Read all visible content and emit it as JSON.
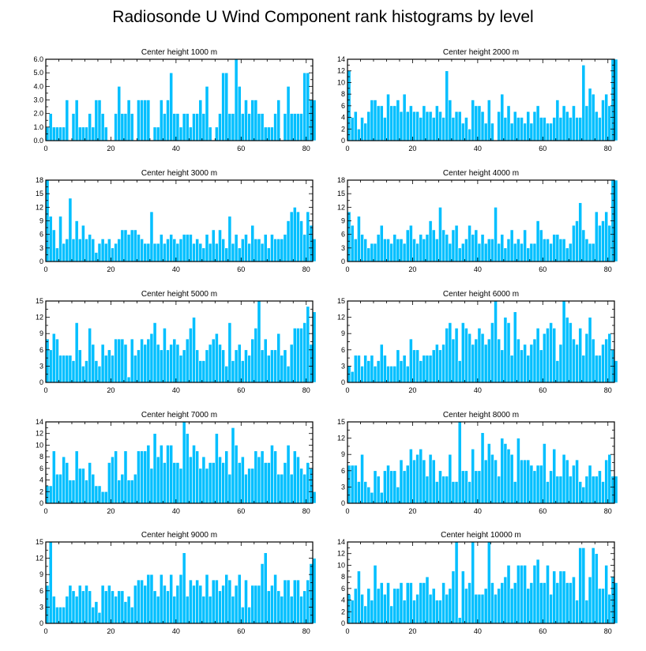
{
  "figure": {
    "title": "Radiosonde U Wind Component rank histograms by level"
  },
  "colors": {
    "bar": "#00BFFF",
    "bar_edge": "#ffffff",
    "axis": "#000000"
  },
  "chart_data": [
    {
      "type": "bar",
      "title": "Center height 1000 m",
      "xlim": [
        0,
        82
      ],
      "ylim": [
        0,
        6
      ],
      "xticks": [
        "0",
        "20",
        "40",
        "60",
        "80"
      ],
      "yticks": [
        "0.0",
        "1.0",
        "2.0",
        "3.0",
        "4.0",
        "5.0",
        "6.0"
      ],
      "values": [
        1,
        2,
        1,
        1,
        1,
        1,
        3,
        0,
        2,
        3,
        1,
        1,
        1,
        2,
        1,
        3,
        3,
        2,
        1,
        0,
        0,
        2,
        4,
        2,
        2,
        3,
        2,
        0,
        3,
        3,
        3,
        3,
        0,
        1,
        1,
        3,
        2,
        3,
        5,
        2,
        2,
        1,
        2,
        2,
        1,
        2,
        2,
        3,
        2,
        4,
        1,
        0,
        1,
        2,
        5,
        5,
        2,
        2,
        6,
        4,
        2,
        3,
        2,
        3,
        3,
        2,
        2,
        1,
        1,
        1,
        2,
        3,
        0,
        2,
        4,
        2,
        2,
        2,
        2,
        5,
        5,
        3,
        3
      ]
    },
    {
      "type": "bar",
      "title": "Center height 2000 m",
      "xlim": [
        0,
        82
      ],
      "ylim": [
        0,
        14
      ],
      "xticks": [
        "0",
        "20",
        "40",
        "60",
        "80"
      ],
      "yticks": [
        "0",
        "2",
        "4",
        "6",
        "8",
        "10",
        "12",
        "14"
      ],
      "values": [
        12,
        4,
        5,
        2,
        4,
        3,
        5,
        7,
        7,
        6,
        6,
        4,
        8,
        6,
        6,
        7,
        5,
        8,
        5,
        6,
        5,
        5,
        4,
        6,
        5,
        5,
        4,
        6,
        5,
        4,
        12,
        7,
        4,
        5,
        5,
        3,
        4,
        2,
        7,
        6,
        6,
        5,
        3,
        7,
        3,
        0,
        5,
        8,
        4,
        6,
        3,
        5,
        4,
        4,
        3,
        5,
        3,
        5,
        6,
        4,
        4,
        3,
        3,
        4,
        7,
        4,
        6,
        5,
        4,
        6,
        4,
        4,
        13,
        6,
        9,
        8,
        5,
        4,
        7,
        8,
        6,
        14,
        14
      ]
    },
    {
      "type": "bar",
      "title": "Center height 3000 m",
      "xlim": [
        0,
        82
      ],
      "ylim": [
        0,
        18
      ],
      "xticks": [
        "0",
        "20",
        "40",
        "60",
        "80"
      ],
      "yticks": [
        "0",
        "3",
        "6",
        "9",
        "12",
        "15",
        "18"
      ],
      "values": [
        18,
        10,
        7,
        3,
        10,
        4,
        5,
        14,
        5,
        9,
        5,
        8,
        5,
        6,
        5,
        2,
        4,
        5,
        4,
        5,
        3,
        4,
        5,
        7,
        7,
        6,
        7,
        7,
        6,
        5,
        4,
        4,
        11,
        4,
        4,
        6,
        4,
        5,
        6,
        5,
        4,
        5,
        6,
        6,
        6,
        4,
        5,
        4,
        3,
        6,
        4,
        7,
        4,
        7,
        5,
        3,
        10,
        4,
        6,
        3,
        5,
        6,
        4,
        8,
        5,
        5,
        4,
        6,
        3,
        6,
        5,
        5,
        5,
        6,
        9,
        11,
        12,
        11,
        9,
        6,
        11,
        8,
        5
      ]
    },
    {
      "type": "bar",
      "title": "Center height 4000 m",
      "xlim": [
        0,
        82
      ],
      "ylim": [
        0,
        18
      ],
      "xticks": [
        "0",
        "20",
        "40",
        "60",
        "80"
      ],
      "yticks": [
        "0",
        "3",
        "6",
        "9",
        "12",
        "15",
        "18"
      ],
      "values": [
        11,
        8,
        5,
        10,
        6,
        5,
        3,
        4,
        4,
        6,
        8,
        5,
        5,
        4,
        6,
        5,
        5,
        4,
        7,
        8,
        5,
        4,
        6,
        5,
        6,
        9,
        7,
        5,
        12,
        7,
        6,
        4,
        7,
        8,
        3,
        4,
        5,
        8,
        6,
        7,
        4,
        6,
        4,
        5,
        5,
        12,
        4,
        6,
        3,
        5,
        7,
        4,
        5,
        4,
        7,
        3,
        4,
        4,
        9,
        7,
        5,
        5,
        4,
        6,
        6,
        5,
        5,
        3,
        4,
        8,
        9,
        13,
        7,
        5,
        4,
        4,
        11,
        8,
        9,
        11,
        8,
        18,
        18
      ]
    },
    {
      "type": "bar",
      "title": "Center height 5000 m",
      "xlim": [
        0,
        82
      ],
      "ylim": [
        0,
        15
      ],
      "xticks": [
        "0",
        "20",
        "40",
        "60",
        "80"
      ],
      "yticks": [
        "0",
        "3",
        "6",
        "9",
        "12",
        "15"
      ],
      "values": [
        8,
        6,
        9,
        8,
        5,
        5,
        5,
        5,
        4,
        11,
        6,
        3,
        4,
        10,
        7,
        4,
        3,
        7,
        5,
        6,
        5,
        8,
        8,
        8,
        7,
        1,
        8,
        5,
        6,
        8,
        7,
        8,
        9,
        11,
        7,
        6,
        10,
        6,
        7,
        8,
        7,
        5,
        6,
        8,
        10,
        12,
        6,
        4,
        4,
        6,
        7,
        8,
        9,
        7,
        6,
        3,
        11,
        4,
        6,
        7,
        4,
        6,
        5,
        8,
        10,
        15,
        6,
        8,
        5,
        6,
        6,
        9,
        5,
        6,
        3,
        7,
        10,
        10,
        10,
        11,
        14,
        7,
        13
      ]
    },
    {
      "type": "bar",
      "title": "Center height 6000 m",
      "xlim": [
        0,
        82
      ],
      "ylim": [
        0,
        15
      ],
      "xticks": [
        "0",
        "20",
        "40",
        "60",
        "80"
      ],
      "yticks": [
        "0",
        "3",
        "6",
        "9",
        "12",
        "15"
      ],
      "values": [
        3,
        2,
        5,
        5,
        3,
        5,
        4,
        5,
        3,
        4,
        7,
        5,
        3,
        3,
        3,
        6,
        4,
        5,
        3,
        8,
        6,
        6,
        4,
        5,
        5,
        5,
        6,
        7,
        6,
        7,
        10,
        11,
        8,
        10,
        4,
        11,
        10,
        9,
        7,
        8,
        10,
        9,
        7,
        8,
        11,
        15,
        8,
        6,
        12,
        11,
        5,
        13,
        8,
        6,
        7,
        5,
        7,
        8,
        10,
        6,
        9,
        10,
        11,
        10,
        4,
        7,
        15,
        12,
        11,
        8,
        7,
        10,
        5,
        9,
        12,
        8,
        5,
        5,
        7,
        8,
        9,
        6,
        4
      ]
    },
    {
      "type": "bar",
      "title": "Center height 7000 m",
      "xlim": [
        0,
        82
      ],
      "ylim": [
        0,
        14
      ],
      "xticks": [
        "0",
        "20",
        "40",
        "60",
        "80"
      ],
      "yticks": [
        "0",
        "2",
        "4",
        "6",
        "8",
        "10",
        "12",
        "14"
      ],
      "values": [
        3,
        3,
        9,
        5,
        5,
        8,
        7,
        4,
        4,
        9,
        6,
        6,
        4,
        7,
        5,
        3,
        3,
        2,
        2,
        7,
        8,
        9,
        4,
        5,
        9,
        4,
        4,
        5,
        9,
        9,
        9,
        10,
        6,
        12,
        8,
        10,
        7,
        10,
        10,
        7,
        7,
        6,
        14,
        12,
        8,
        10,
        9,
        6,
        8,
        6,
        7,
        7,
        12,
        8,
        7,
        9,
        5,
        13,
        10,
        7,
        8,
        5,
        6,
        6,
        9,
        8,
        9,
        7,
        7,
        10,
        9,
        5,
        5,
        7,
        10,
        5,
        9,
        8,
        6,
        5,
        7,
        6,
        2
      ]
    },
    {
      "type": "bar",
      "title": "Center height 8000 m",
      "xlim": [
        0,
        82
      ],
      "ylim": [
        0,
        15
      ],
      "xticks": [
        "0",
        "20",
        "40",
        "60",
        "80"
      ],
      "yticks": [
        "0",
        "3",
        "6",
        "9",
        "12",
        "15"
      ],
      "values": [
        7,
        7,
        7,
        4,
        9,
        4,
        3,
        2,
        6,
        5,
        2,
        6,
        7,
        6,
        6,
        3,
        8,
        6,
        7,
        10,
        8,
        9,
        10,
        8,
        5,
        9,
        8,
        4,
        6,
        5,
        5,
        9,
        4,
        4,
        15,
        6,
        6,
        4,
        10,
        6,
        6,
        13,
        8,
        11,
        9,
        8,
        5,
        12,
        11,
        10,
        9,
        4,
        12,
        8,
        8,
        8,
        7,
        6,
        7,
        7,
        11,
        4,
        6,
        10,
        5,
        5,
        9,
        8,
        5,
        7,
        8,
        4,
        3,
        5,
        7,
        5,
        5,
        6,
        4,
        8,
        9,
        5,
        5
      ]
    },
    {
      "type": "bar",
      "title": "Center height 9000 m",
      "xlim": [
        0,
        82
      ],
      "ylim": [
        0,
        15
      ],
      "xticks": [
        "0",
        "20",
        "40",
        "60",
        "80"
      ],
      "yticks": [
        "0",
        "3",
        "6",
        "9",
        "12",
        "15"
      ],
      "values": [
        7,
        15,
        5,
        3,
        3,
        3,
        5,
        7,
        6,
        5,
        7,
        6,
        7,
        6,
        3,
        4,
        2,
        7,
        6,
        7,
        6,
        5,
        6,
        6,
        4,
        5,
        3,
        7,
        8,
        8,
        7,
        9,
        9,
        6,
        5,
        9,
        7,
        6,
        9,
        5,
        7,
        9,
        13,
        5,
        8,
        7,
        8,
        7,
        5,
        9,
        5,
        8,
        8,
        6,
        7,
        9,
        8,
        5,
        7,
        9,
        3,
        8,
        3,
        7,
        7,
        7,
        11,
        13,
        6,
        7,
        9,
        6,
        5,
        8,
        8,
        5,
        8,
        8,
        5,
        6,
        8,
        11,
        12
      ]
    },
    {
      "type": "bar",
      "title": "Center height 10000 m",
      "xlim": [
        0,
        82
      ],
      "ylim": [
        0,
        14
      ],
      "xticks": [
        "0",
        "20",
        "40",
        "60",
        "80"
      ],
      "yticks": [
        "0",
        "2",
        "4",
        "6",
        "8",
        "10",
        "12",
        "14"
      ],
      "values": [
        5,
        4,
        6,
        9,
        5,
        3,
        6,
        4,
        10,
        6,
        7,
        5,
        7,
        3,
        6,
        6,
        7,
        4,
        7,
        7,
        4,
        5,
        7,
        7,
        8,
        5,
        6,
        4,
        4,
        7,
        5,
        6,
        9,
        14,
        1,
        9,
        6,
        7,
        14,
        5,
        5,
        5,
        6,
        14,
        7,
        5,
        6,
        7,
        8,
        10,
        6,
        7,
        10,
        10,
        10,
        6,
        7,
        10,
        11,
        7,
        7,
        10,
        5,
        9,
        7,
        9,
        9,
        7,
        7,
        8,
        4,
        13,
        13,
        4,
        8,
        13,
        12,
        6,
        6,
        10,
        5,
        8,
        7
      ]
    }
  ]
}
